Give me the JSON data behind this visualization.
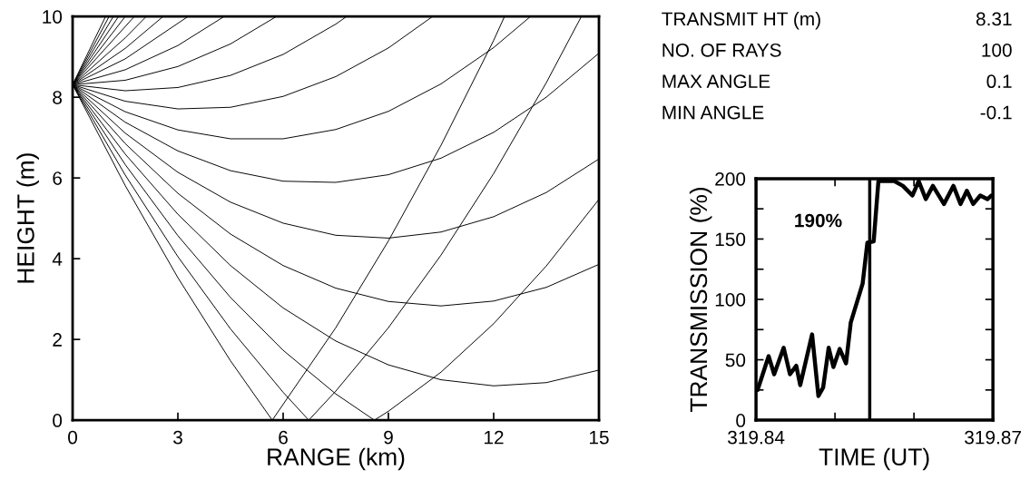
{
  "chart_data": [
    {
      "type": "line",
      "xlabel": "RANGE (km)",
      "ylabel": "HEIGHT (m)",
      "xlim": [
        0,
        15
      ],
      "ylim": [
        0,
        10
      ],
      "xticks": [
        0,
        3,
        6,
        9,
        12,
        15
      ],
      "yticks": [
        0,
        2,
        4,
        6,
        8,
        10
      ],
      "color": "#000000",
      "grid": false,
      "legend": false,
      "series": [
        {
          "x": [
            0,
            1.5,
            3,
            4.5,
            5.69,
            7.5,
            9,
            10.5,
            12,
            12.31
          ],
          "values": [
            8.31,
            5.81,
            3.53,
            1.47,
            0,
            2.29,
            4.44,
            6.81,
            9.41,
            10
          ]
        },
        {
          "x": [
            0,
            1.5,
            3,
            4.5,
            6,
            6.73,
            7.5,
            9,
            10.5,
            12,
            13.5,
            14.5
          ],
          "values": [
            8.31,
            6.07,
            4.05,
            2.26,
            0.69,
            0,
            0.72,
            2.29,
            4.09,
            6.11,
            8.36,
            10
          ]
        },
        {
          "x": [
            0,
            1.5,
            3,
            4.5,
            6,
            7.5,
            8.6,
            9,
            10.5,
            12,
            13.5,
            15
          ],
          "values": [
            8.31,
            6.33,
            4.57,
            3.04,
            1.73,
            0.65,
            0,
            0.22,
            1.19,
            2.39,
            3.82,
            5.47
          ]
        },
        {
          "x": [
            0,
            1.5,
            3,
            4.5,
            6,
            7.5,
            9,
            10.5,
            12,
            13.5,
            15
          ],
          "values": [
            8.31,
            6.59,
            5.1,
            3.83,
            2.78,
            1.96,
            1.37,
            1.0,
            0.85,
            0.93,
            1.24
          ]
        },
        {
          "x": [
            0,
            1.5,
            3,
            4.5,
            6,
            7.5,
            9,
            10.5,
            12,
            13.5,
            15
          ],
          "values": [
            8.31,
            6.85,
            5.62,
            4.61,
            3.83,
            3.27,
            2.94,
            2.83,
            2.95,
            3.29,
            3.86
          ]
        },
        {
          "x": [
            0,
            1.5,
            3,
            4.5,
            6,
            7.5,
            9,
            10.5,
            12,
            13.5,
            15
          ],
          "values": [
            8.31,
            7.11,
            6.14,
            5.4,
            4.88,
            4.58,
            4.51,
            4.66,
            5.04,
            5.64,
            6.47
          ]
        },
        {
          "x": [
            0,
            1.5,
            3,
            4.5,
            6,
            7.5,
            9,
            10.5,
            12,
            13.5,
            15
          ],
          "values": [
            8.31,
            7.38,
            6.67,
            6.18,
            5.92,
            5.89,
            6.08,
            6.49,
            7.13,
            8.0,
            9.09
          ]
        },
        {
          "x": [
            0,
            1.5,
            3,
            4.5,
            6,
            7.5,
            9,
            10.5,
            12,
            13.05
          ],
          "values": [
            8.31,
            7.64,
            7.19,
            6.97,
            6.97,
            7.2,
            7.65,
            8.33,
            9.23,
            10
          ]
        },
        {
          "x": [
            0,
            1.5,
            3,
            4.5,
            6,
            7.5,
            9,
            10.26
          ],
          "values": [
            8.31,
            7.9,
            7.71,
            7.75,
            8.02,
            8.51,
            9.22,
            10
          ]
        },
        {
          "x": [
            0,
            1.5,
            3,
            4.5,
            6,
            7.5,
            7.81
          ],
          "values": [
            8.31,
            8.16,
            8.24,
            8.54,
            9.06,
            9.81,
            10
          ]
        },
        {
          "x": [
            0,
            1.5,
            3,
            4.5,
            5.81
          ],
          "values": [
            8.31,
            8.42,
            8.76,
            9.32,
            10
          ]
        },
        {
          "x": [
            0,
            1.5,
            3,
            4.32
          ],
          "values": [
            8.31,
            8.68,
            9.28,
            10
          ]
        },
        {
          "x": [
            0,
            1.5,
            3.29
          ],
          "values": [
            8.31,
            8.95,
            10
          ]
        },
        {
          "x": [
            0,
            1.5,
            2.58
          ],
          "values": [
            8.31,
            9.21,
            10
          ]
        },
        {
          "x": [
            0,
            1.5,
            2.1
          ],
          "values": [
            8.31,
            9.47,
            10
          ]
        },
        {
          "x": [
            0,
            1.76
          ],
          "values": [
            8.31,
            10
          ]
        },
        {
          "x": [
            0,
            1.5
          ],
          "values": [
            8.31,
            10
          ]
        },
        {
          "x": [
            0,
            1.31
          ],
          "values": [
            8.31,
            10
          ]
        },
        {
          "x": [
            0,
            1.16
          ],
          "values": [
            8.31,
            10
          ]
        },
        {
          "x": [
            0,
            1.04
          ],
          "values": [
            8.31,
            10
          ]
        },
        {
          "x": [
            0,
            0.94
          ],
          "values": [
            8.31,
            10
          ]
        }
      ]
    },
    {
      "type": "other",
      "annotations": [
        "TRANSMIT HT (m)",
        "8.31",
        "NO. OF RAYS",
        "100",
        "MAX ANGLE",
        "0.1",
        "MIN ANGLE",
        "-0.1"
      ]
    },
    {
      "type": "line",
      "xlabel": "TIME (UT)",
      "ylabel": "TRANSMISSION (%)",
      "xlim": [
        319.84,
        319.87
      ],
      "ylim": [
        0,
        200
      ],
      "xticks": [
        319.84,
        {
          "value": 319.85,
          "label": null
        },
        {
          "value": 319.86,
          "label": null
        },
        319.87
      ],
      "yticks": [
        0,
        {
          "value": 25,
          "label": null
        },
        50,
        {
          "value": 75,
          "label": null
        },
        100,
        {
          "value": 125,
          "label": null
        },
        150,
        {
          "value": 175,
          "label": null
        },
        200
      ],
      "grid": false,
      "legend": false,
      "annotations": [
        "190%"
      ],
      "ref_lines": [
        {
          "axis": "x",
          "value": 319.8544,
          "color": "#000000"
        }
      ],
      "series": [
        {
          "color": "#000000",
          "x": [
            319.8402,
            319.8416,
            319.8423,
            319.8435,
            319.8443,
            319.8451,
            319.8456,
            319.8471,
            319.8479,
            319.8485,
            319.8492,
            319.8498,
            319.8506,
            319.8514,
            319.852,
            319.8535,
            319.8541,
            319.8549,
            319.8555,
            319.8563,
            319.8575,
            319.8586,
            319.8598,
            319.8606,
            319.8615,
            319.8624,
            319.8638,
            319.865,
            319.8659,
            319.8667,
            319.8675,
            319.8684,
            319.8693,
            319.8698
          ],
          "values": [
            25,
            53,
            38,
            60,
            38,
            45,
            29,
            71,
            20,
            27,
            60,
            44,
            59,
            47,
            81,
            113,
            147,
            148,
            198,
            198,
            198,
            194,
            186,
            198,
            183,
            194,
            179,
            194,
            179,
            190,
            179,
            186,
            183,
            186
          ]
        }
      ]
    }
  ]
}
